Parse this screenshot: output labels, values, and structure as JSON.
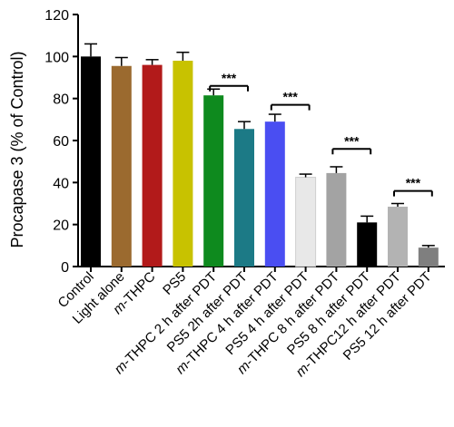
{
  "chart_data": {
    "type": "bar",
    "title": "",
    "xlabel": "",
    "ylabel": "Procapase 3 (% of Control)",
    "ylim": [
      0,
      120
    ],
    "yticks": [
      0,
      20,
      40,
      60,
      80,
      100,
      120
    ],
    "grid": false,
    "categories": [
      {
        "prefix": "",
        "rest": "Control"
      },
      {
        "prefix": "",
        "rest": "Light alone"
      },
      {
        "prefix": "m",
        "rest": "-THPC"
      },
      {
        "prefix": "",
        "rest": "PS5"
      },
      {
        "prefix": "m",
        "rest": "-THPC 2 h after PDT"
      },
      {
        "prefix": "",
        "rest": "PS5 2h after PDT"
      },
      {
        "prefix": "m",
        "rest": "-THPC 4 h after PDT"
      },
      {
        "prefix": "",
        "rest": "PS5 4 h after PDT"
      },
      {
        "prefix": "m",
        "rest": "-THPC 8 h after PDT"
      },
      {
        "prefix": "",
        "rest": "PS5 8 h after PDT"
      },
      {
        "prefix": "m",
        "rest": "-THPC12 h after PDT"
      },
      {
        "prefix": "",
        "rest": "PS5 12 h after PDT"
      }
    ],
    "values": [
      100,
      95.5,
      96,
      98,
      81.5,
      65.5,
      69,
      42.5,
      44.5,
      21,
      28.5,
      9
    ],
    "errors": [
      6,
      4,
      2.5,
      4,
      3,
      3.5,
      3.5,
      1.5,
      3,
      3,
      1.5,
      1
    ],
    "colors": [
      "#000000",
      "#9b6a2f",
      "#b21a1a",
      "#c8c200",
      "#0e8a1e",
      "#1c7a86",
      "#4a4ef2",
      "#e8e8e8",
      "#a3a3a3",
      "#000000",
      "#b3b3b3",
      "#7f7f7f"
    ],
    "significance": [
      {
        "from": 4,
        "to": 5,
        "level": 86,
        "label": "***"
      },
      {
        "from": 6,
        "to": 7,
        "level": 77,
        "label": "***"
      },
      {
        "from": 8,
        "to": 9,
        "level": 56,
        "label": "***"
      },
      {
        "from": 10,
        "to": 11,
        "level": 36,
        "label": "***"
      }
    ]
  }
}
